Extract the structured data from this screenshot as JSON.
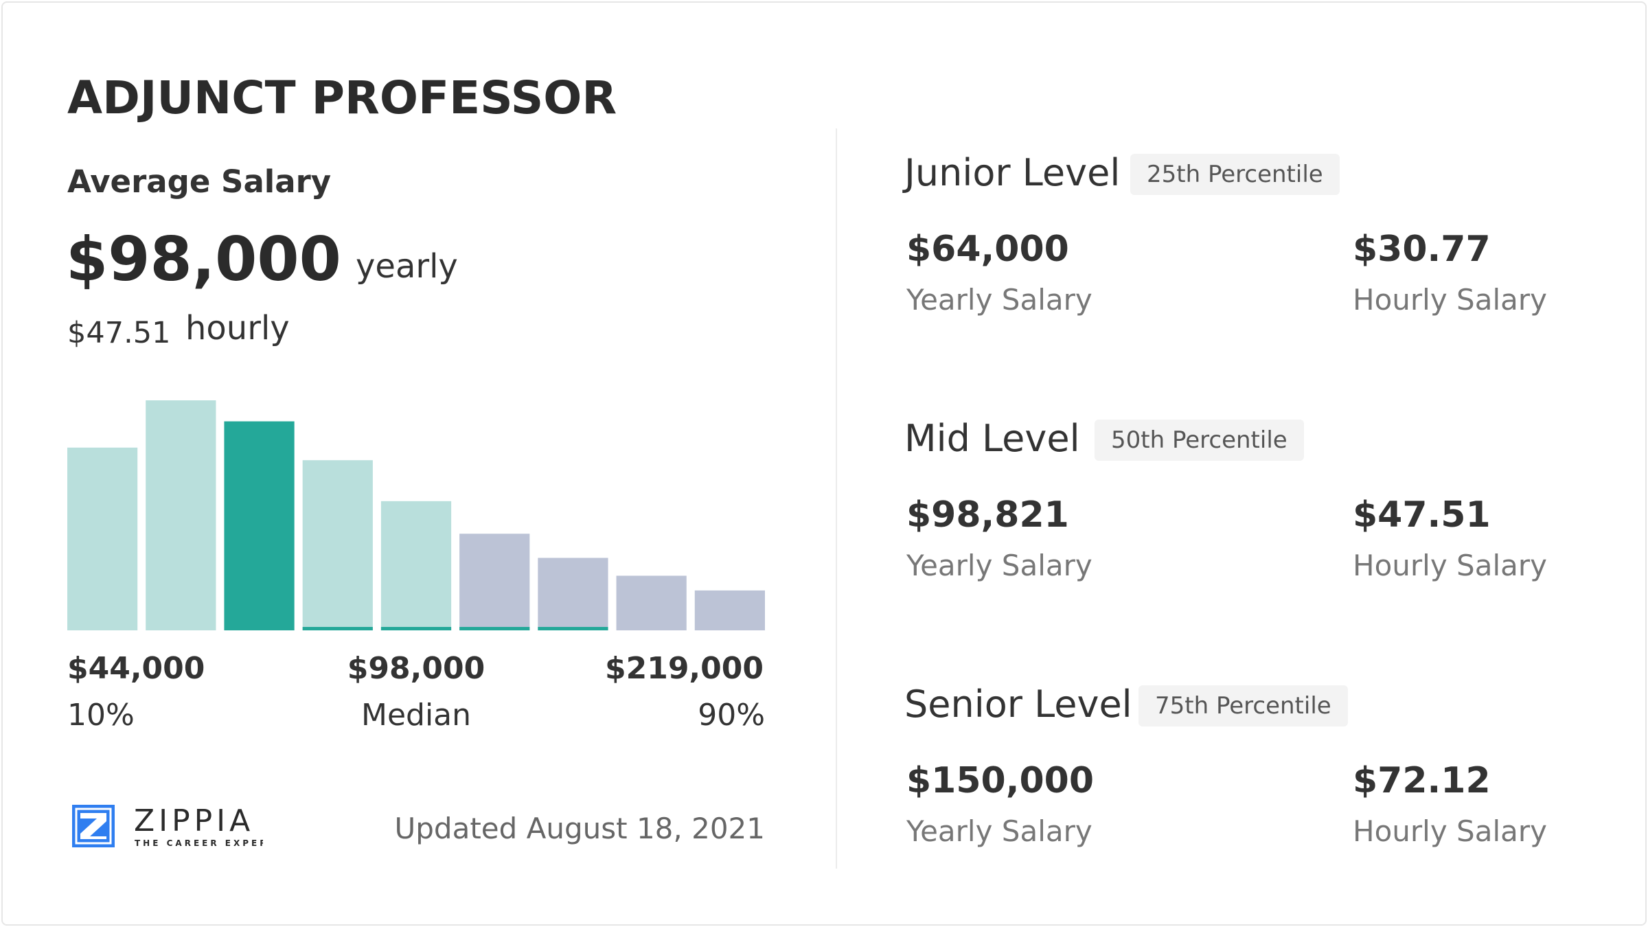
{
  "title": "ADJUNCT PROFESSOR",
  "average": {
    "label": "Average Salary",
    "yearly": "$98,000",
    "yearly_unit": "yearly",
    "hourly": "$47.51",
    "hourly_unit": "hourly"
  },
  "chart_data": {
    "type": "bar",
    "title": "",
    "xlabel": "",
    "ylabel": "",
    "grid": false,
    "values": [
      174,
      219,
      199,
      162,
      123,
      92,
      69,
      52,
      38
    ],
    "highlight_index": 2,
    "colors": {
      "teal_light": "#b9dfdc",
      "teal": "#24a899",
      "gray": "#bcc3d6"
    },
    "bar_colors": [
      "teal_light",
      "teal_light",
      "teal",
      "teal_light",
      "teal_light",
      "gray",
      "gray",
      "gray",
      "gray"
    ],
    "underline": [
      false,
      false,
      false,
      true,
      true,
      true,
      true,
      false,
      false
    ],
    "x_labels": [
      {
        "value": "$44,000",
        "label": "10%"
      },
      {
        "value": "$98,000",
        "label": "Median"
      },
      {
        "value": "$219,000",
        "label": "90%"
      }
    ]
  },
  "footer": {
    "logo_text": "ZIPPIA",
    "logo_tagline": "THE CAREER EXPERT",
    "updated": "Updated August 18, 2021"
  },
  "levels": [
    {
      "title": "Junior Level",
      "badge": "25th Percentile",
      "yearly": "$64,000",
      "yearly_label": "Yearly Salary",
      "hourly": "$30.77",
      "hourly_label": "Hourly Salary"
    },
    {
      "title": "Mid Level",
      "badge": "50th Percentile",
      "yearly": "$98,821",
      "yearly_label": "Yearly Salary",
      "hourly": "$47.51",
      "hourly_label": "Hourly Salary"
    },
    {
      "title": "Senior Level",
      "badge": "75th Percentile",
      "yearly": "$150,000",
      "yearly_label": "Yearly Salary",
      "hourly": "$72.12",
      "hourly_label": "Hourly Salary"
    }
  ]
}
